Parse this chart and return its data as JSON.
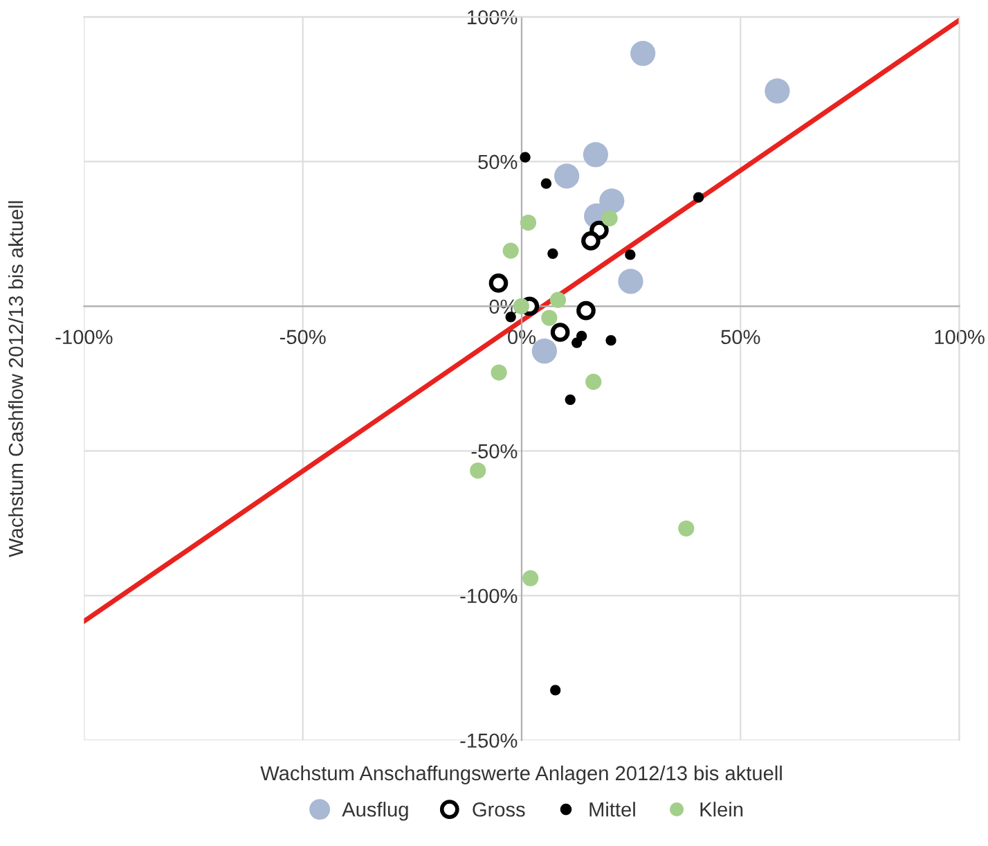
{
  "chart_data": {
    "type": "scatter",
    "xlabel": "Wachstum Anschaffungswerte Anlagen 2012/13 bis aktuell",
    "ylabel": "Wachstum Cashflow 2012/13 bis aktuell",
    "xlim": [
      -100,
      100
    ],
    "ylim": [
      -150,
      100
    ],
    "xticks": [
      {
        "value": -100,
        "label": "-100%"
      },
      {
        "value": -50,
        "label": "-50%"
      },
      {
        "value": 0,
        "label": "0%"
      },
      {
        "value": 50,
        "label": "50%"
      },
      {
        "value": 100,
        "label": "100%"
      }
    ],
    "yticks": [
      {
        "value": -150,
        "label": "-150%"
      },
      {
        "value": -100,
        "label": "-100%"
      },
      {
        "value": -50,
        "label": "-50%"
      },
      {
        "value": 0,
        "label": "0%"
      },
      {
        "value": 50,
        "label": "50%"
      },
      {
        "value": 100,
        "label": "100%"
      }
    ],
    "grid": true,
    "legend": "bottom",
    "marker": "circle",
    "series": [
      {
        "name": "Ausflug",
        "color": "#a9b8d3",
        "x": [
          27.7,
          58.4,
          16.9,
          10.3,
          20.6,
          17.1,
          24.9,
          5.2
        ],
        "values": [
          87.4,
          74.4,
          52.4,
          45,
          36.4,
          31.2,
          8.6,
          -15.5
        ]
      },
      {
        "name": "Gross",
        "color": "#000000",
        "x": [
          -5.3,
          1.8,
          17.7,
          15.8,
          14.7,
          8.8
        ],
        "values": [
          8,
          0,
          26.3,
          22.6,
          -1.5,
          -9
        ]
      },
      {
        "name": "Mittel",
        "color": "#000000",
        "x": [
          0.8,
          5.6,
          40.4,
          7.1,
          24.8,
          -2.5,
          13.7,
          12.6,
          20.4,
          11.1,
          7.7
        ],
        "values": [
          51.5,
          42.4,
          37.6,
          18.2,
          17.8,
          -3.7,
          -10.3,
          -12.6,
          -11.8,
          -32.3,
          -132.7
        ]
      },
      {
        "name": "Klein",
        "color": "#a3cf8a",
        "x": [
          1.5,
          -2.5,
          20.1,
          8.3,
          -0.1,
          6.3,
          -5.2,
          16.4,
          -10,
          37.6,
          2
        ],
        "values": [
          28.9,
          19.2,
          30.4,
          2.2,
          0,
          -4,
          -22.9,
          -26.1,
          -56.8,
          -76.8,
          -94
        ]
      },
      {
        "type": "line",
        "marker": "none",
        "color": "#e8231f",
        "x": [
          -100,
          100
        ],
        "values": [
          -108.9,
          98.9
        ]
      }
    ]
  }
}
